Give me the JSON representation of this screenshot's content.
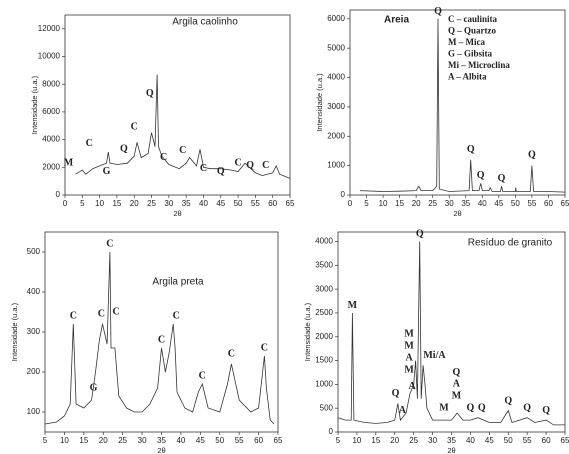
{
  "chart_data": [
    {
      "type": "line",
      "title": "Argila caolinho",
      "x_label": "2θ",
      "y_label": "Intensidade (u.a.)",
      "xlim": [
        0,
        65
      ],
      "xticks": [
        0,
        5,
        10,
        15,
        20,
        25,
        30,
        35,
        40,
        45,
        50,
        55,
        60,
        65
      ],
      "ylim": [
        0,
        13000
      ],
      "yticks": [
        0,
        2000,
        4000,
        6000,
        8000,
        10000,
        12000
      ],
      "series": [
        {
          "name": "Argila caolinho",
          "color": "#333333",
          "x": [
            3,
            5,
            6,
            8,
            10,
            12,
            12.5,
            13,
            15,
            18,
            20,
            20.8,
            22,
            24,
            25,
            26,
            26.6,
            27,
            28,
            30,
            33,
            35,
            36,
            38,
            39,
            40,
            42,
            45,
            48,
            50,
            52,
            55,
            57,
            60,
            61,
            62,
            64,
            65
          ],
          "values": [
            1500,
            1800,
            1500,
            1900,
            2100,
            2300,
            3100,
            2300,
            2200,
            2300,
            2800,
            3800,
            2700,
            3000,
            4500,
            3500,
            8700,
            3500,
            2800,
            2200,
            1900,
            2300,
            2700,
            2100,
            3300,
            2000,
            1900,
            1900,
            1800,
            1700,
            2300,
            1600,
            1400,
            1600,
            2100,
            1500,
            1300,
            1200
          ]
        }
      ],
      "annotations": [
        {
          "text": "M",
          "x": 1,
          "y": 2300
        },
        {
          "text": "C",
          "x": 7,
          "y": 3700
        },
        {
          "text": "G",
          "x": 12,
          "y": 1700
        },
        {
          "text": "Q",
          "x": 17,
          "y": 3300
        },
        {
          "text": "C",
          "x": 20,
          "y": 4900
        },
        {
          "text": "Q",
          "x": 24.5,
          "y": 7300
        },
        {
          "text": "C",
          "x": 28.5,
          "y": 2700
        },
        {
          "text": "C",
          "x": 34,
          "y": 3200
        },
        {
          "text": "C",
          "x": 40,
          "y": 1900
        },
        {
          "text": "Q",
          "x": 45,
          "y": 1700
        },
        {
          "text": "C",
          "x": 50,
          "y": 2300
        },
        {
          "text": "Q",
          "x": 53.5,
          "y": 2100
        },
        {
          "text": "C",
          "x": 58,
          "y": 2100
        }
      ]
    },
    {
      "type": "line",
      "title": "Areia",
      "x_label": "2θ",
      "y_label": "Intensidade (u.a.)",
      "xlim": [
        0,
        65
      ],
      "xticks": [
        0,
        5,
        10,
        15,
        20,
        25,
        30,
        35,
        40,
        45,
        50,
        55,
        60,
        65
      ],
      "ylim": [
        0,
        6300
      ],
      "yticks": [
        0,
        1000,
        2000,
        3000,
        4000,
        5000,
        6000
      ],
      "legend_text": [
        "C – caulinita",
        "Q – Quartzo",
        "M – Mica",
        "G – Gibsita",
        "Mi – Microclina",
        "A – Albita"
      ],
      "series": [
        {
          "name": "Areia",
          "color": "#333333",
          "x": [
            3,
            10,
            15,
            20,
            20.8,
            21.5,
            25,
            26.2,
            26.6,
            27,
            30,
            36,
            36.5,
            37,
            39,
            39.5,
            40,
            42,
            42.4,
            43,
            45.5,
            45.8,
            46.2,
            50,
            50.1,
            50.3,
            54.5,
            55,
            55.5,
            60,
            65
          ],
          "values": [
            150,
            120,
            130,
            150,
            300,
            150,
            150,
            300,
            6000,
            200,
            120,
            150,
            1200,
            150,
            150,
            400,
            150,
            150,
            250,
            120,
            120,
            300,
            120,
            120,
            250,
            120,
            120,
            1000,
            120,
            120,
            100
          ]
        }
      ],
      "annotations": [
        {
          "text": "Q",
          "x": 26.6,
          "y": 6250
        },
        {
          "text": "Q",
          "x": 36.5,
          "y": 1550
        },
        {
          "text": "Q",
          "x": 39.5,
          "y": 650
        },
        {
          "text": "Q",
          "x": 45.8,
          "y": 550
        },
        {
          "text": "Q",
          "x": 55,
          "y": 1350
        }
      ]
    },
    {
      "type": "line",
      "title": "Argila preta",
      "x_label": "2θ",
      "y_label": "Intensidade (u.a.)",
      "xlim": [
        5,
        65
      ],
      "xticks": [
        5,
        10,
        15,
        20,
        25,
        30,
        35,
        40,
        45,
        50,
        55,
        60,
        65
      ],
      "ylim": [
        50,
        550
      ],
      "yticks": [
        100,
        200,
        300,
        400,
        500
      ],
      "series": [
        {
          "name": "Argila preta",
          "color": "#333333",
          "x": [
            5,
            8,
            10,
            11.5,
            12.3,
            13,
            15,
            17,
            18,
            19,
            19.8,
            21,
            21.7,
            22,
            23,
            24,
            26,
            28,
            30,
            32,
            34,
            35,
            36,
            37,
            38,
            38.5,
            39,
            41,
            43,
            44.5,
            45.5,
            47,
            50,
            52,
            53,
            55,
            58,
            60,
            61.5,
            62,
            63,
            64
          ],
          "values": [
            70,
            75,
            90,
            120,
            320,
            120,
            110,
            130,
            200,
            280,
            320,
            270,
            500,
            260,
            260,
            140,
            110,
            100,
            100,
            120,
            160,
            260,
            200,
            250,
            320,
            260,
            150,
            110,
            100,
            150,
            170,
            110,
            100,
            170,
            220,
            130,
            100,
            110,
            240,
            160,
            80,
            70
          ]
        }
      ],
      "annotations": [
        {
          "text": "C",
          "x": 12.3,
          "y": 340
        },
        {
          "text": "G",
          "x": 17.5,
          "y": 160
        },
        {
          "text": "C",
          "x": 19.5,
          "y": 345
        },
        {
          "text": "C",
          "x": 21.7,
          "y": 520
        },
        {
          "text": "C",
          "x": 23.3,
          "y": 350
        },
        {
          "text": "C",
          "x": 35,
          "y": 280
        },
        {
          "text": "C",
          "x": 38.8,
          "y": 340
        },
        {
          "text": "C",
          "x": 45.5,
          "y": 190
        },
        {
          "text": "C",
          "x": 53,
          "y": 245
        },
        {
          "text": "C",
          "x": 61.5,
          "y": 260
        }
      ]
    },
    {
      "type": "line",
      "title": "Resíduo de granito",
      "x_label": "2θ",
      "y_label": "Intensidade (u.a.)",
      "xlim": [
        5,
        65
      ],
      "xticks": [
        5,
        10,
        15,
        20,
        25,
        30,
        35,
        40,
        45,
        50,
        55,
        60,
        65
      ],
      "ylim": [
        0,
        4200
      ],
      "yticks": [
        0,
        500,
        1000,
        1500,
        2000,
        2500,
        3000,
        3500,
        4000
      ],
      "series": [
        {
          "name": "Resíduo de granito",
          "color": "#333333",
          "x": [
            5,
            7,
            8.5,
            8.8,
            9.2,
            12,
            15,
            18,
            20,
            20.8,
            21.5,
            22,
            23,
            24,
            25,
            25.5,
            26,
            26.6,
            27,
            27.5,
            28,
            28.5,
            30,
            33,
            35,
            36.5,
            38,
            40,
            42,
            45,
            48,
            50,
            51,
            55,
            57,
            60,
            62,
            65
          ],
          "values": [
            300,
            250,
            250,
            2500,
            250,
            200,
            180,
            200,
            250,
            600,
            250,
            300,
            400,
            800,
            1000,
            1500,
            700,
            4000,
            700,
            1400,
            1000,
            500,
            250,
            250,
            250,
            400,
            250,
            250,
            300,
            200,
            200,
            450,
            200,
            300,
            200,
            250,
            150,
            150
          ]
        }
      ],
      "annotations": [
        {
          "text": "M",
          "x": 8.8,
          "y": 2650
        },
        {
          "text": "Q",
          "x": 20.2,
          "y": 800
        },
        {
          "text": "A",
          "x": 22,
          "y": 450
        },
        {
          "text": "M",
          "x": 23.8,
          "y": 2050
        },
        {
          "text": "M",
          "x": 23.8,
          "y": 1800
        },
        {
          "text": "A",
          "x": 23.8,
          "y": 1550
        },
        {
          "text": "M",
          "x": 23.8,
          "y": 1300
        },
        {
          "text": "A",
          "x": 24.6,
          "y": 950
        },
        {
          "text": "Q",
          "x": 26.6,
          "y": 4150
        },
        {
          "text": "Mi/A",
          "x": 30.5,
          "y": 1600
        },
        {
          "text": "M",
          "x": 33,
          "y": 500
        },
        {
          "text": "Q",
          "x": 36.3,
          "y": 1250
        },
        {
          "text": "A",
          "x": 36.3,
          "y": 1000
        },
        {
          "text": "M",
          "x": 36.3,
          "y": 750
        },
        {
          "text": "Q",
          "x": 40,
          "y": 500
        },
        {
          "text": "Q",
          "x": 43,
          "y": 500
        },
        {
          "text": "Q",
          "x": 50,
          "y": 650
        },
        {
          "text": "Q",
          "x": 55,
          "y": 500
        },
        {
          "text": "Q",
          "x": 60,
          "y": 450
        }
      ]
    }
  ]
}
